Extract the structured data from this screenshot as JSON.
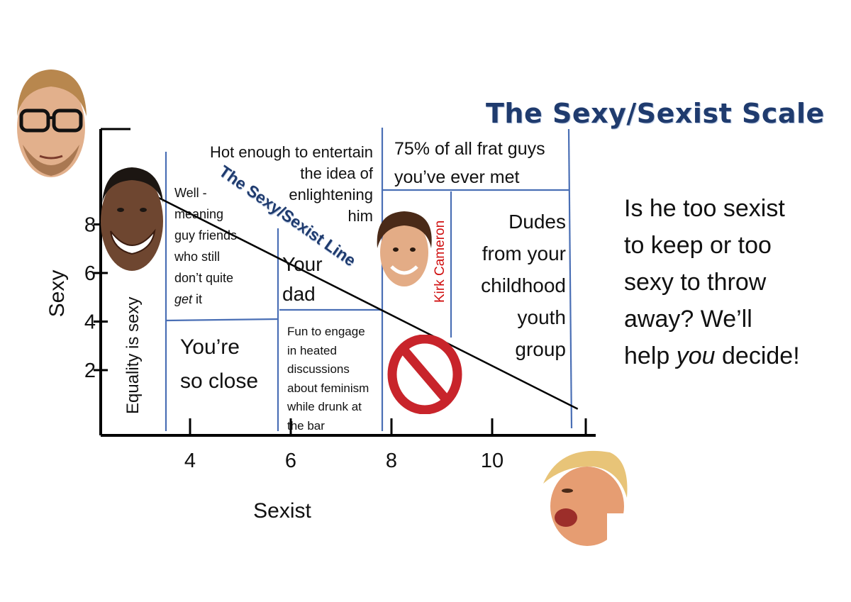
{
  "title": "The Sexy/Sexist Scale",
  "side_text": {
    "line1": "Is he too sexist",
    "line2": "to keep or too",
    "line3": "sexy to throw",
    "line4": "away? We’ll",
    "line5_pre": "help ",
    "line5_em": "you",
    "line5_post": " decide!"
  },
  "regions": {
    "equality": "Equality is sexy",
    "well_meaning": [
      "Well -",
      "meaning",
      "guy friends",
      "who still",
      "don’t quite"
    ],
    "well_meaning_em": "get",
    "well_meaning_post": " it",
    "hot_enough": [
      "Hot enough to entertain",
      "the idea of",
      "enlightening",
      "him"
    ],
    "frat": [
      "75% of all frat guys",
      "you’ve ever met"
    ],
    "your_dad": [
      "Your",
      "dad"
    ],
    "dudes": [
      "Dudes",
      "from your",
      "childhood",
      "youth",
      "group"
    ],
    "so_close": [
      "You’re",
      "so close"
    ],
    "fun": [
      "Fun to engage",
      "in heated",
      "discussions",
      "about feminism",
      "while drunk at",
      "the bar"
    ],
    "kirk": "Kirk Cameron",
    "line_label": "The Sexy/Sexist Line"
  },
  "chart_data": {
    "type": "line",
    "title": "The Sexy/Sexist Scale",
    "xlabel": "Sexist",
    "ylabel": "Sexy",
    "x_ticks": [
      4,
      6,
      8,
      10
    ],
    "y_ticks": [
      2,
      4,
      6,
      8
    ],
    "series": [
      {
        "name": "The Sexy/Sexist Line",
        "x": [
          2.8,
          11.7
        ],
        "y": [
          9.7,
          0.4
        ]
      }
    ],
    "colors": {
      "axis": "#000000",
      "dividers": "#4a6fb5",
      "sexy_line": "#000000",
      "title": "#1f3b6e",
      "kirk": "#d01010",
      "no_sign": "#c8242b"
    }
  }
}
